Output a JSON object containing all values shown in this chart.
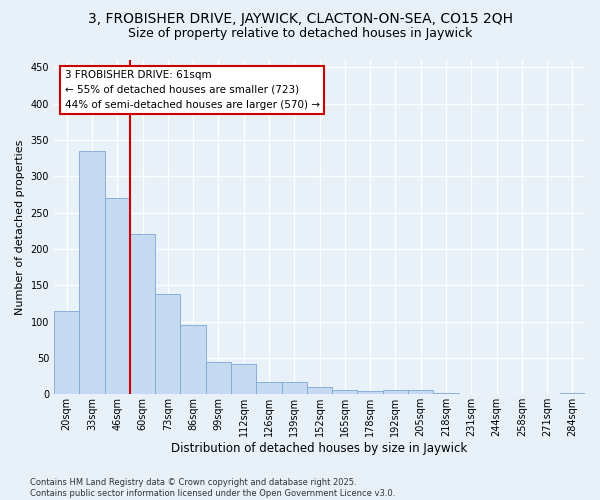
{
  "title1": "3, FROBISHER DRIVE, JAYWICK, CLACTON-ON-SEA, CO15 2QH",
  "title2": "Size of property relative to detached houses in Jaywick",
  "xlabel": "Distribution of detached houses by size in Jaywick",
  "ylabel": "Number of detached properties",
  "categories": [
    "20sqm",
    "33sqm",
    "46sqm",
    "60sqm",
    "73sqm",
    "86sqm",
    "99sqm",
    "112sqm",
    "126sqm",
    "139sqm",
    "152sqm",
    "165sqm",
    "178sqm",
    "192sqm",
    "205sqm",
    "218sqm",
    "231sqm",
    "244sqm",
    "258sqm",
    "271sqm",
    "284sqm"
  ],
  "values": [
    115,
    335,
    270,
    220,
    138,
    95,
    44,
    42,
    17,
    17,
    10,
    6,
    5,
    6,
    6,
    2,
    1,
    1,
    1,
    1,
    2
  ],
  "bar_color": "#c5d9f1",
  "bar_edge_color": "#7da6d4",
  "background_color": "#e8f0f8",
  "grid_color": "#ffffff",
  "annotation_line1": "3 FROBISHER DRIVE: 61sqm",
  "annotation_line2": "← 55% of detached houses are smaller (723)",
  "annotation_line3": "44% of semi-detached houses are larger (570) →",
  "annotation_box_color": "#ffffff",
  "annotation_box_edge_color": "#cc0000",
  "vline_color": "#cc0000",
  "ylim": [
    0,
    460
  ],
  "yticks": [
    0,
    50,
    100,
    150,
    200,
    250,
    300,
    350,
    400,
    450
  ],
  "footnote": "Contains HM Land Registry data © Crown copyright and database right 2025.\nContains public sector information licensed under the Open Government Licence v3.0.",
  "title1_fontsize": 10,
  "title2_fontsize": 9,
  "tick_fontsize": 7,
  "xlabel_fontsize": 8.5,
  "ylabel_fontsize": 8,
  "annotation_fontsize": 7.5,
  "footnote_fontsize": 6
}
